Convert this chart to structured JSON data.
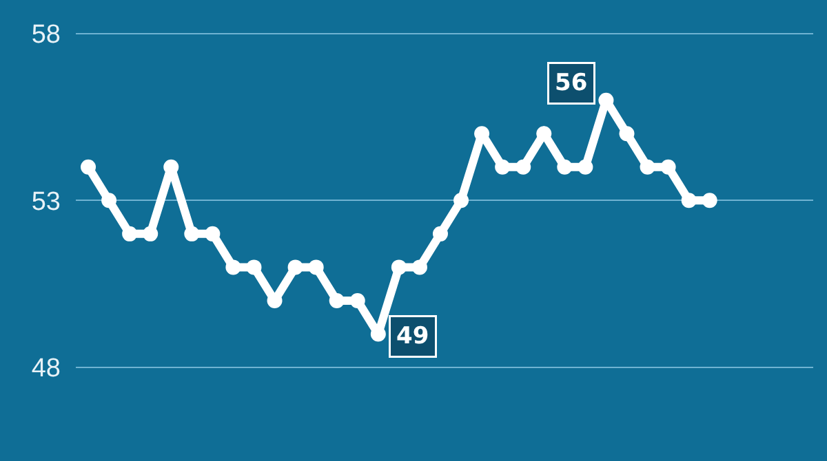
{
  "chart_data": {
    "type": "line",
    "categories": [
      null,
      null,
      null,
      null,
      null,
      null,
      null,
      null,
      null,
      null,
      null,
      null,
      null,
      null,
      null,
      null,
      null,
      null,
      null,
      null,
      null,
      null,
      null,
      null,
      null,
      null,
      null,
      null,
      null,
      null,
      null
    ],
    "series": [
      {
        "color": "#ffffff",
        "values": [
          54,
          53,
          52,
          52,
          54,
          52,
          52,
          51,
          51,
          50,
          51,
          51,
          50,
          50,
          49,
          51,
          51,
          52,
          53,
          55,
          54,
          54,
          55,
          54,
          54,
          56,
          55,
          54,
          54,
          53,
          53
        ],
        "value_labels": [
          null,
          null,
          null,
          null,
          null,
          null,
          null,
          null,
          null,
          null,
          null,
          null,
          null,
          null,
          "49",
          null,
          null,
          null,
          null,
          null,
          null,
          null,
          null,
          null,
          null,
          "56",
          null,
          null,
          null,
          null,
          null
        ]
      }
    ],
    "ylim": [
      45.2,
      59
    ],
    "yticks": [
      48,
      53,
      58
    ],
    "grid": "y",
    "marker": "circle",
    "line_style": "solid"
  }
}
